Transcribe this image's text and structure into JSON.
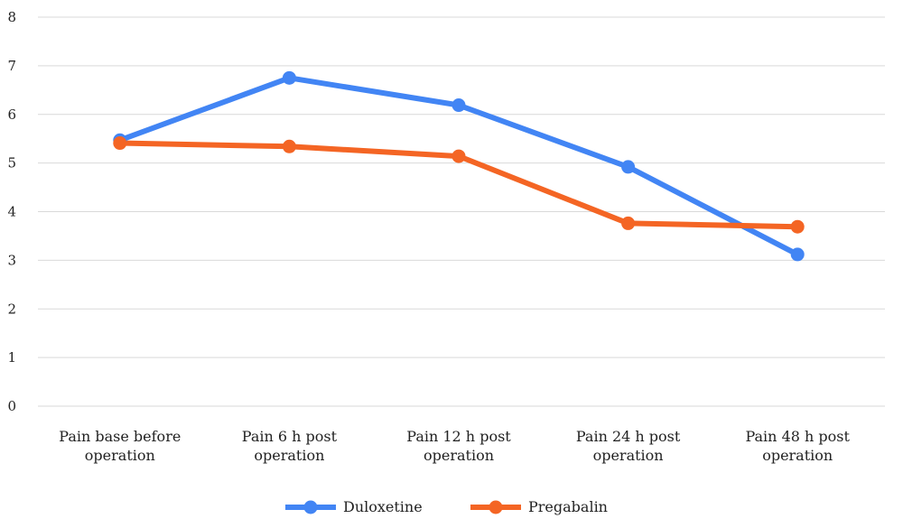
{
  "chart_data": {
    "type": "line",
    "title": "",
    "xlabel": "",
    "ylabel": "",
    "categories": [
      [
        "Pain base before",
        "operation"
      ],
      [
        "Pain 6 h post",
        "operation"
      ],
      [
        "Pain 12 h post",
        "operation"
      ],
      [
        "Pain 24 h post",
        "operation"
      ],
      [
        "Pain 48 h post",
        "operation"
      ]
    ],
    "yticks": [
      "0",
      "1",
      "2",
      "3",
      "4",
      "5",
      "6",
      "7",
      "8"
    ],
    "ylim": [
      0,
      8
    ],
    "grid": true,
    "legend_position": "bottom",
    "series": [
      {
        "name": "Duloxetine",
        "color": "#4285f4",
        "values": [
          5.47,
          6.75,
          6.19,
          4.92,
          3.12
        ]
      },
      {
        "name": "Pregabalin",
        "color": "#f46524",
        "values": [
          5.41,
          5.34,
          5.14,
          3.76,
          3.69
        ]
      }
    ]
  }
}
